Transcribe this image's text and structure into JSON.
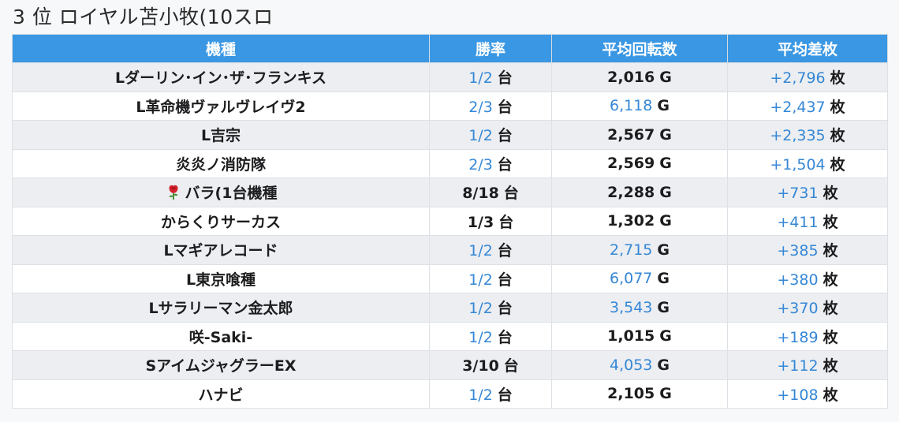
{
  "heading": "3 位 ロイヤル苫小牧(10スロ",
  "table": {
    "headers": [
      "機種",
      "勝率",
      "平均回転数",
      "平均差枚"
    ],
    "units": {
      "rate": "台",
      "spins": "G",
      "diff": "枚"
    },
    "rows": [
      {
        "name": "Lダーリン･イン･ザ･フランキス",
        "icon": null,
        "rate": "1/2",
        "rate_link": true,
        "spins": "2,016",
        "spins_link": false,
        "diff": "+2,796",
        "diff_link": true
      },
      {
        "name": "L革命機ヴァルヴレイヴ2",
        "icon": null,
        "rate": "2/3",
        "rate_link": true,
        "spins": "6,118",
        "spins_link": true,
        "diff": "+2,437",
        "diff_link": true
      },
      {
        "name": "L吉宗",
        "icon": null,
        "rate": "1/2",
        "rate_link": true,
        "spins": "2,567",
        "spins_link": false,
        "diff": "+2,335",
        "diff_link": true
      },
      {
        "name": "炎炎ノ消防隊",
        "icon": null,
        "rate": "2/3",
        "rate_link": true,
        "spins": "2,569",
        "spins_link": false,
        "diff": "+1,504",
        "diff_link": true
      },
      {
        "name": "バラ(1台機種",
        "icon": "rose-icon",
        "rate": "8/18",
        "rate_link": false,
        "spins": "2,288",
        "spins_link": false,
        "diff": "+731",
        "diff_link": true
      },
      {
        "name": "からくりサーカス",
        "icon": null,
        "rate": "1/3",
        "rate_link": false,
        "spins": "1,302",
        "spins_link": false,
        "diff": "+411",
        "diff_link": true
      },
      {
        "name": "Lマギアレコード",
        "icon": null,
        "rate": "1/2",
        "rate_link": true,
        "spins": "2,715",
        "spins_link": true,
        "diff": "+385",
        "diff_link": true
      },
      {
        "name": "L東京喰種",
        "icon": null,
        "rate": "1/2",
        "rate_link": true,
        "spins": "6,077",
        "spins_link": true,
        "diff": "+380",
        "diff_link": true
      },
      {
        "name": "Lサラリーマン金太郎",
        "icon": null,
        "rate": "1/2",
        "rate_link": true,
        "spins": "3,543",
        "spins_link": true,
        "diff": "+370",
        "diff_link": true
      },
      {
        "name": "咲-Saki-",
        "icon": null,
        "rate": "1/2",
        "rate_link": true,
        "spins": "1,015",
        "spins_link": false,
        "diff": "+189",
        "diff_link": true
      },
      {
        "name": "SアイムジャグラーEX",
        "icon": null,
        "rate": "3/10",
        "rate_link": false,
        "spins": "4,053",
        "spins_link": true,
        "diff": "+112",
        "diff_link": true
      },
      {
        "name": "ハナビ",
        "icon": null,
        "rate": "1/2",
        "rate_link": true,
        "spins": "2,105",
        "spins_link": false,
        "diff": "+108",
        "diff_link": true
      }
    ]
  },
  "colors": {
    "header_bg": "#3a97e3",
    "link": "#3587d6",
    "row_alt": "#eceef1"
  }
}
